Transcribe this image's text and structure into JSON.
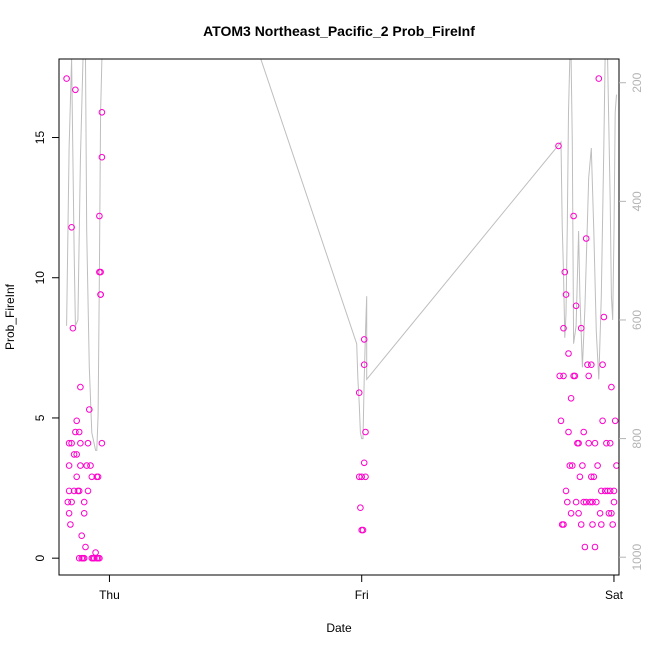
{
  "chart_data": {
    "type": "scatter",
    "title": "ATOM3 Northeast_Pacific_2 Prob_FireInf",
    "xlabel": "Date",
    "ylabel": "Prob_FireInf",
    "x_ticks": [
      "Thu",
      "Fri",
      "Sat"
    ],
    "x_range_days": [
      -0.2,
      2.02
    ],
    "y_ticks": [
      0,
      5,
      10,
      15
    ],
    "ylim": [
      -0.6,
      17.8
    ],
    "y2_ticks": [
      200,
      400,
      600,
      800,
      1000
    ],
    "y2lim_top_to_bottom": [
      160,
      1030
    ],
    "y2_inverted": true,
    "grid": false,
    "legend": "none",
    "colors": {
      "points": "#ff00cc",
      "line": "#bebebe",
      "axis": "#000000",
      "right_axis": "#b4b4b4"
    },
    "series": [
      {
        "kind": "points",
        "points": [
          [
            -0.17,
            17.1
          ],
          [
            -0.16,
            4.1
          ],
          [
            -0.16,
            3.3
          ],
          [
            -0.16,
            2.4
          ],
          [
            -0.165,
            2.0
          ],
          [
            -0.16,
            1.6
          ],
          [
            -0.155,
            1.2
          ],
          [
            -0.15,
            11.8
          ],
          [
            -0.15,
            4.1
          ],
          [
            -0.15,
            2.0
          ],
          [
            -0.145,
            8.2
          ],
          [
            -0.14,
            2.4
          ],
          [
            -0.14,
            3.7
          ],
          [
            -0.135,
            4.5
          ],
          [
            -0.135,
            16.7
          ],
          [
            -0.13,
            4.9
          ],
          [
            -0.13,
            3.7
          ],
          [
            -0.13,
            2.9
          ],
          [
            -0.125,
            2.4
          ],
          [
            -0.12,
            2.4
          ],
          [
            -0.12,
            4.5
          ],
          [
            -0.12,
            0.0
          ],
          [
            -0.115,
            6.1
          ],
          [
            -0.115,
            4.1
          ],
          [
            -0.115,
            3.3
          ],
          [
            -0.11,
            0.8
          ],
          [
            -0.11,
            0.0
          ],
          [
            -0.105,
            0.0
          ],
          [
            -0.1,
            0.0
          ],
          [
            -0.1,
            2.0
          ],
          [
            -0.1,
            1.6
          ],
          [
            -0.095,
            0.4
          ],
          [
            -0.09,
            3.3
          ],
          [
            -0.085,
            4.1
          ],
          [
            -0.085,
            2.4
          ],
          [
            -0.08,
            5.3
          ],
          [
            -0.075,
            3.3
          ],
          [
            -0.07,
            0.0
          ],
          [
            -0.07,
            2.9
          ],
          [
            -0.065,
            0.0
          ],
          [
            -0.06,
            0.0
          ],
          [
            -0.055,
            0.2
          ],
          [
            -0.05,
            0.0
          ],
          [
            -0.05,
            2.9
          ],
          [
            -0.045,
            0.0
          ],
          [
            -0.045,
            2.9
          ],
          [
            -0.04,
            0.0
          ],
          [
            -0.04,
            12.2
          ],
          [
            -0.04,
            10.2
          ],
          [
            -0.035,
            9.4
          ],
          [
            -0.035,
            10.2
          ],
          [
            -0.035,
            9.4
          ],
          [
            -0.03,
            14.3
          ],
          [
            -0.03,
            15.9
          ],
          [
            -0.03,
            4.1
          ],
          [
            0.99,
            5.9
          ],
          [
            0.99,
            2.9
          ],
          [
            0.995,
            1.8
          ],
          [
            1.0,
            1.0
          ],
          [
            1.0,
            2.9
          ],
          [
            1.005,
            1.0
          ],
          [
            1.01,
            3.4
          ],
          [
            1.01,
            6.9
          ],
          [
            1.01,
            7.8
          ],
          [
            1.015,
            4.5
          ],
          [
            1.015,
            2.9
          ],
          [
            1.78,
            14.7
          ],
          [
            1.785,
            6.5
          ],
          [
            1.79,
            4.9
          ],
          [
            1.795,
            1.2
          ],
          [
            1.8,
            1.2
          ],
          [
            1.8,
            6.5
          ],
          [
            1.8,
            8.2
          ],
          [
            1.805,
            10.2
          ],
          [
            1.81,
            9.4
          ],
          [
            1.81,
            2.4
          ],
          [
            1.815,
            2.0
          ],
          [
            1.82,
            7.3
          ],
          [
            1.82,
            4.5
          ],
          [
            1.825,
            3.3
          ],
          [
            1.83,
            5.7
          ],
          [
            1.83,
            1.6
          ],
          [
            1.835,
            3.3
          ],
          [
            1.84,
            12.2
          ],
          [
            1.84,
            6.5
          ],
          [
            1.845,
            6.5
          ],
          [
            1.85,
            9.0
          ],
          [
            1.85,
            2.0
          ],
          [
            1.855,
            4.1
          ],
          [
            1.86,
            4.1
          ],
          [
            1.86,
            1.6
          ],
          [
            1.865,
            2.9
          ],
          [
            1.87,
            1.2
          ],
          [
            1.87,
            8.2
          ],
          [
            1.875,
            3.3
          ],
          [
            1.88,
            4.5
          ],
          [
            1.88,
            2.0
          ],
          [
            1.885,
            0.4
          ],
          [
            1.89,
            11.4
          ],
          [
            1.89,
            2.0
          ],
          [
            1.895,
            6.9
          ],
          [
            1.9,
            6.5
          ],
          [
            1.9,
            4.1
          ],
          [
            1.905,
            2.0
          ],
          [
            1.91,
            2.9
          ],
          [
            1.91,
            6.9
          ],
          [
            1.915,
            2.0
          ],
          [
            1.915,
            1.2
          ],
          [
            1.92,
            2.9
          ],
          [
            1.925,
            0.4
          ],
          [
            1.925,
            4.1
          ],
          [
            1.93,
            2.0
          ],
          [
            1.935,
            3.3
          ],
          [
            1.94,
            17.1
          ],
          [
            1.945,
            1.6
          ],
          [
            1.95,
            1.2
          ],
          [
            1.95,
            2.4
          ],
          [
            1.955,
            4.9
          ],
          [
            1.955,
            6.9
          ],
          [
            1.96,
            8.6
          ],
          [
            1.965,
            2.4
          ],
          [
            1.97,
            4.1
          ],
          [
            1.975,
            2.4
          ],
          [
            1.98,
            1.6
          ],
          [
            1.985,
            2.4
          ],
          [
            1.985,
            4.1
          ],
          [
            1.99,
            6.1
          ],
          [
            1.99,
            1.6
          ],
          [
            1.995,
            1.2
          ],
          [
            2.0,
            2.4
          ],
          [
            2.0,
            2.0
          ],
          [
            2.005,
            4.9
          ],
          [
            2.01,
            3.3
          ]
        ]
      },
      {
        "kind": "line",
        "axis": "right",
        "points": [
          [
            -0.17,
            610
          ],
          [
            -0.16,
            310
          ],
          [
            -0.15,
            160
          ],
          [
            -0.14,
            480
          ],
          [
            -0.135,
            610
          ],
          [
            -0.125,
            600
          ],
          [
            -0.115,
            330
          ],
          [
            -0.105,
            160
          ],
          [
            -0.095,
            160
          ],
          [
            -0.09,
            450
          ],
          [
            -0.08,
            680
          ],
          [
            -0.07,
            790
          ],
          [
            -0.055,
            820
          ],
          [
            -0.05,
            820
          ],
          [
            -0.045,
            760
          ],
          [
            -0.04,
            520
          ],
          [
            -0.035,
            250
          ],
          [
            -0.03,
            160
          ],
          [
            0.6,
            160
          ],
          [
            0.98,
            640
          ],
          [
            0.985,
            700
          ],
          [
            0.99,
            740
          ],
          [
            0.995,
            790
          ],
          [
            1.0,
            800
          ],
          [
            1.005,
            800
          ],
          [
            1.01,
            700
          ],
          [
            1.015,
            620
          ],
          [
            1.02,
            560
          ],
          [
            1.02,
            700
          ],
          [
            1.79,
            300
          ],
          [
            1.795,
            440
          ],
          [
            1.8,
            520
          ],
          [
            1.805,
            630
          ],
          [
            1.81,
            590
          ],
          [
            1.815,
            440
          ],
          [
            1.82,
            250
          ],
          [
            1.825,
            160
          ],
          [
            1.83,
            160
          ],
          [
            1.835,
            300
          ],
          [
            1.84,
            640
          ],
          [
            1.85,
            610
          ],
          [
            1.86,
            450
          ],
          [
            1.865,
            560
          ],
          [
            1.875,
            680
          ],
          [
            1.885,
            580
          ],
          [
            1.9,
            360
          ],
          [
            1.91,
            310
          ],
          [
            1.92,
            450
          ],
          [
            1.93,
            620
          ],
          [
            1.94,
            700
          ],
          [
            1.95,
            560
          ],
          [
            1.96,
            300
          ],
          [
            1.965,
            160
          ],
          [
            1.975,
            160
          ],
          [
            1.985,
            400
          ],
          [
            1.99,
            560
          ],
          [
            1.995,
            600
          ],
          [
            2.0,
            450
          ],
          [
            2.005,
            250
          ],
          [
            2.01,
            220
          ]
        ]
      }
    ]
  }
}
